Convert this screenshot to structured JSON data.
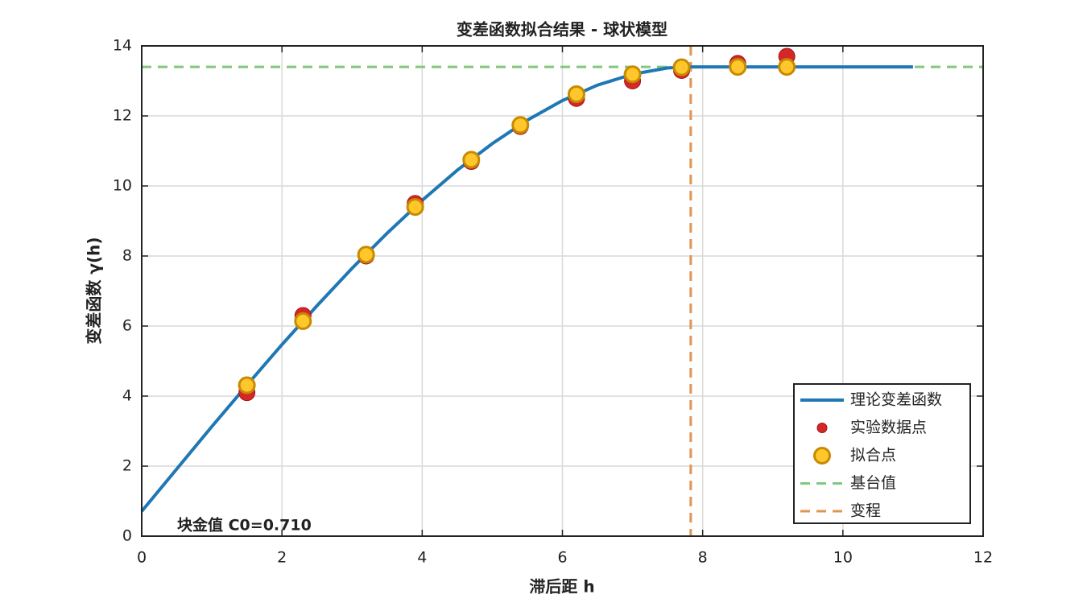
{
  "chart_data": {
    "type": "line",
    "title": "变差函数拟合结果 - 球状模型",
    "x_label": "滞后距 h",
    "y_label": "变差函数 γ(h)",
    "annotation": "块金值 C0=0.710",
    "xlim": [
      0,
      12
    ],
    "xticks": [
      0,
      2,
      4,
      6,
      8,
      10,
      12
    ],
    "ylim": [
      0,
      14
    ],
    "yticks": [
      0,
      2,
      4,
      6,
      8,
      10,
      12,
      14
    ],
    "grid": true,
    "legend": "lower right",
    "series": [
      {
        "name": "理论变差函数",
        "color": "#1f77b4",
        "style": "line",
        "x": [
          0,
          0.5,
          1,
          1.5,
          2,
          2.5,
          3,
          3.5,
          4,
          4.5,
          5,
          5.5,
          6,
          6.5,
          7,
          7.5,
          7.83,
          8,
          8.5,
          9,
          9.5,
          10,
          10.5,
          11
        ],
        "values": [
          0.71,
          1.92,
          3.13,
          4.31,
          5.47,
          6.58,
          7.65,
          8.65,
          9.59,
          10.45,
          11.21,
          11.88,
          12.44,
          12.88,
          13.19,
          13.37,
          13.4,
          13.4,
          13.4,
          13.4,
          13.4,
          13.4,
          13.4,
          13.4
        ]
      },
      {
        "name": "实验数据点",
        "color": "#d62728",
        "style": "marker",
        "x": [
          1.5,
          2.3,
          3.2,
          3.9,
          4.7,
          5.4,
          6.2,
          7.0,
          7.7,
          8.5,
          9.2
        ],
        "values": [
          4.1,
          6.3,
          8.0,
          9.5,
          10.7,
          11.7,
          12.5,
          13.0,
          13.3,
          13.5,
          13.7
        ]
      },
      {
        "name": "拟合点",
        "color": "#ffc72c",
        "style": "circle",
        "x": [
          1.5,
          2.3,
          3.2,
          3.9,
          4.7,
          5.4,
          6.2,
          7.0,
          7.7,
          8.5,
          9.2
        ],
        "values": [
          4.31,
          6.14,
          8.04,
          9.4,
          10.75,
          11.74,
          12.62,
          13.19,
          13.39,
          13.4,
          13.4
        ]
      },
      {
        "name": "基台值",
        "color": "#7fc97f",
        "style": "hline",
        "value": 13.4
      },
      {
        "name": "变程",
        "color": "#e09650",
        "style": "vline",
        "value": 7.83
      }
    ]
  }
}
